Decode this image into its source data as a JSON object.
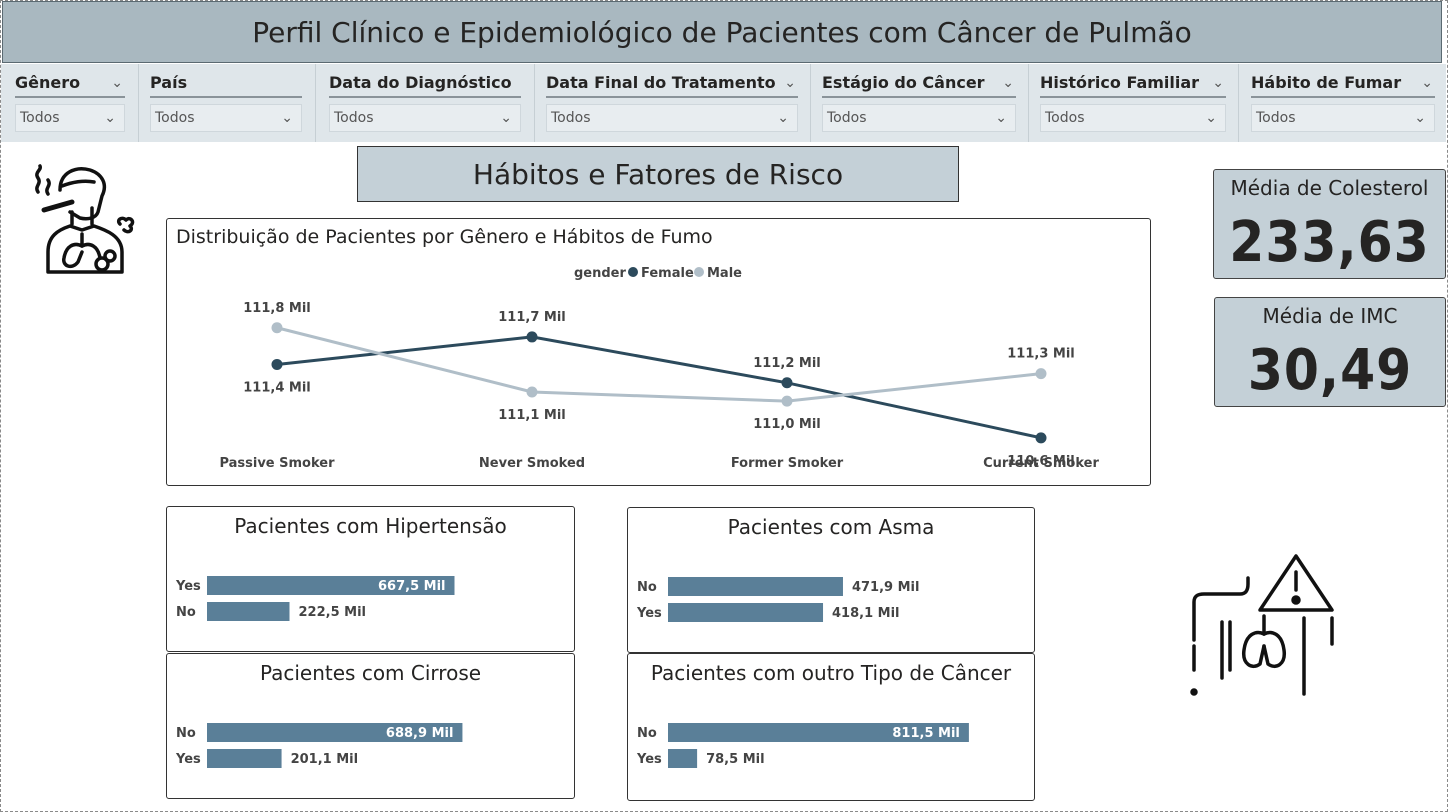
{
  "title": "Perfil Clínico e Epidemiológico de Pacientes com Câncer de Pulmão",
  "slicers": [
    {
      "label": "Gênero",
      "value": "Todos"
    },
    {
      "label": "País",
      "value": "Todos"
    },
    {
      "label": "Data do Diagnóstico",
      "value": "Todos"
    },
    {
      "label": "Data Final do Tratamento",
      "value": "Todos"
    },
    {
      "label": "Estágio do Câncer",
      "value": "Todos"
    },
    {
      "label": "Histórico Familiar",
      "value": "Todos"
    },
    {
      "label": "Hábito de Fumar",
      "value": "Todos"
    }
  ],
  "section_title": "Hábitos e Fatores de Risco",
  "icons": {
    "smoker": "smoker-lungs-icon",
    "warning": "lungs-warning-icon"
  },
  "kpis": {
    "cholesterol": {
      "label": "Média de Colesterol",
      "value": "233,63"
    },
    "bmi": {
      "label": "Média de IMC",
      "value": "30,49"
    }
  },
  "colors": {
    "female": "#2c4a5c",
    "male": "#b0bec8",
    "bar": "#5a7f98",
    "slicer_bg": "#dfe6ea",
    "title_bg": "#a9b8c0",
    "card_bg": "#c4d0d7"
  },
  "chart_data": [
    {
      "type": "line",
      "title": "Distribuição de Pacientes por Gênero e Hábitos de Fumo",
      "legend_title": "gender",
      "legend_position": "top-center",
      "categories": [
        "Passive Smoker",
        "Never Smoked",
        "Former Smoker",
        "Current Smoker"
      ],
      "series": [
        {
          "name": "Female",
          "values": [
            111.4,
            111.7,
            111.2,
            110.6
          ],
          "labels": [
            "111,4 Mil",
            "111,7 Mil",
            "111,2 Mil",
            "110,6 Mil"
          ]
        },
        {
          "name": "Male",
          "values": [
            111.8,
            111.1,
            111.0,
            111.3
          ],
          "labels": [
            "111,8 Mil",
            "111,1 Mil",
            "111,0 Mil",
            "111,3 Mil"
          ]
        }
      ],
      "ylim": [
        110.5,
        111.95
      ],
      "grid": false
    },
    {
      "type": "bar",
      "orientation": "horizontal",
      "title": "Pacientes com Hipertensão",
      "categories": [
        "Yes",
        "No"
      ],
      "values": [
        667.5,
        222.5
      ],
      "labels": [
        "667,5 Mil",
        "222,5 Mil"
      ]
    },
    {
      "type": "bar",
      "orientation": "horizontal",
      "title": "Pacientes com Asma",
      "categories": [
        "No",
        "Yes"
      ],
      "values": [
        471.9,
        418.1
      ],
      "labels": [
        "471,9 Mil",
        "418,1 Mil"
      ]
    },
    {
      "type": "bar",
      "orientation": "horizontal",
      "title": "Pacientes com Cirrose",
      "categories": [
        "No",
        "Yes"
      ],
      "values": [
        688.9,
        201.1
      ],
      "labels": [
        "688,9 Mil",
        "201,1 Mil"
      ]
    },
    {
      "type": "bar",
      "orientation": "horizontal",
      "title": "Pacientes com outro Tipo de Câncer",
      "categories": [
        "No",
        "Yes"
      ],
      "values": [
        811.5,
        78.5
      ],
      "labels": [
        "811,5 Mil",
        "78,5 Mil"
      ]
    }
  ]
}
